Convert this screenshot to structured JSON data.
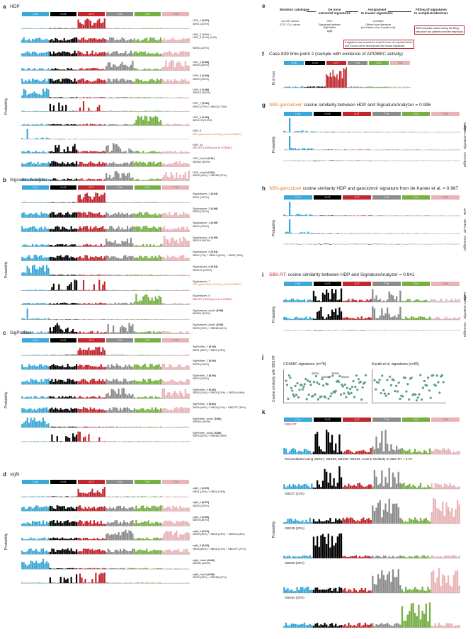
{
  "mut_classes": [
    {
      "name": "C>A",
      "color": "#3aa8d8"
    },
    {
      "name": "C>G",
      "color": "#000000"
    },
    {
      "name": "C>T",
      "color": "#c1272d"
    },
    {
      "name": "T>A",
      "color": "#8c8c8c"
    },
    {
      "name": "T>C",
      "color": "#76b043"
    },
    {
      "name": "T>G",
      "color": "#e8b4b8"
    }
  ],
  "panel_a": {
    "label": "a",
    "title": "HDP",
    "ylabel": "Probability",
    "rows": [
      {
        "n": "HDP_1 ",
        "v": "(0.97)",
        "s": "SBS1 (100%)"
      },
      {
        "n": "HDP_2 (59%) +",
        "v": "",
        "s": "HDP_3 (41%) (0.91)"
      },
      {
        "n": "SBS5 (100%)",
        "v": "",
        "s": ""
      },
      {
        "n": "HDP_4 ",
        "v": "(0.86)",
        "s": "SBS5 (100%)"
      },
      {
        "n": "HDP_5 ",
        "v": "(0.94)",
        "s": "SBS9 (100%)"
      },
      {
        "n": "HDP_6 ",
        "v": "(0.96)",
        "s": "SBS18 (100%)"
      },
      {
        "n": "HDP_7 ",
        "v": "(0.91)",
        "s": "SBS2 (27%) + SBS13 (73%)"
      },
      {
        "n": "HDP_8 ",
        "v": "(0.92)",
        "s": "SBS17b (100%)"
      },
      {
        "n": "HDP_9",
        "v": "",
        "s": "SBS-ganciclovir (100%) (not in COSMIC)"
      },
      {
        "n": "HDP_10",
        "v": "",
        "s": "SBS-RT (100%) (not in COSMIC)"
      },
      {
        "n": "HDP_clust1 ",
        "v": "(0.91)",
        "s": "SBS84 (100%)"
      },
      {
        "n": "HDP_clust2 ",
        "v": "(0.83)",
        "s": "SBS5 (43%) + SBS85 (57%)"
      }
    ]
  },
  "panel_b": {
    "label": "b",
    "title": "SignatureAnalyzer",
    "ylabel": "Probability",
    "rows": [
      {
        "n": "SigAnalyzer_1 ",
        "v": "(0.94)",
        "s": "SBS1 (100%)"
      },
      {
        "n": "SigAnalyzer_2 ",
        "v": "(0.88)",
        "s": "SBS5 (100%)"
      },
      {
        "n": "SigAnalyzer_3 ",
        "v": "(0.89)",
        "s": "SBS9 (100%)"
      },
      {
        "n": "SigAnalyzer_4 ",
        "v": "(0.89)",
        "s": "SBS18 (100%)"
      },
      {
        "n": "SigAnalyzer_5 ",
        "v": "(0.94)",
        "s": "SBS2 (7%) + SBS13 (54%) + SBS5 (39%)"
      },
      {
        "n": "SigAnalyzer_6 ",
        "v": "(0.94)",
        "s": "SBS17b (100%)"
      },
      {
        "n": "SigAnalyzer_7",
        "v": "",
        "s": "SBS-ganciclovir (100%) (not in COSMIC)"
      },
      {
        "n": "SigAnalyzer_8",
        "v": "",
        "s": "SBS-RT (100%) (not in COSMIC)"
      },
      {
        "n": "SigAnalyzer_clust1 ",
        "v": "(0.89)",
        "s": "SBS84 (100%)"
      },
      {
        "n": "SigAnalyzer_clust2 ",
        "v": "(0.90)",
        "s": "SBS5 (19%) + SBS85 (81%)"
      }
    ]
  },
  "panel_c": {
    "label": "c",
    "title": "SigProfiler",
    "ylabel": "Probability",
    "rows": [
      {
        "n": "SigProfiler_1 ",
        "v": "(0.98)",
        "s": "SBS1 (25%) + SBS5 (75%)"
      },
      {
        "n": "SigProfiler_2 ",
        "v": "(0.90)",
        "s": "SBS5 (100%)"
      },
      {
        "n": "SigProfiler_3 ",
        "v": "(0.99)",
        "s": "SBS9 (100%)"
      },
      {
        "n": "SigProfiler_4 ",
        "v": "(0.90)",
        "s": "SBS5 (31%) + SBS8 (23%) + SBS18 (46%)"
      },
      {
        "n": "SigProfiler_5 ",
        "v": "(0.86)",
        "s": "SBS5 (49%) + SBS8 (11%) + SBS-RT (39%)"
      },
      {
        "n": "SigProfiler_clust1 ",
        "v": "(0.84)",
        "s": "SBS84 (100%)"
      },
      {
        "n": "SigProfiler_clust2 ",
        "v": "(0.89)",
        "s": "SBS5 (52%) + SBS85 (48%)"
      }
    ]
  },
  "panel_d": {
    "label": "d",
    "title": "sigfit",
    "ylabel": "Probability",
    "rows": [
      {
        "n": "sigfit_1 ",
        "v": "(0.90)",
        "s": "SBS1 (22%) + SBS5 (78%)"
      },
      {
        "n": "sigfit_2 ",
        "v": "(0.87)",
        "s": "SBS5 (100%)"
      },
      {
        "n": "sigfit_3 ",
        "v": "(0.98)",
        "s": "SBS9 (100%)"
      },
      {
        "n": "sigfit_4 ",
        "v": "(0.91)",
        "s": "SBS5 (40%) + SBS8 (23%) + SBS18 (36%)"
      },
      {
        "n": "sigfit_5 ",
        "v": "(0.93)",
        "s": "SBS5 (62%) + SBS8 (11%) + SBS-RT (27%)"
      },
      {
        "n": "sigfit_clust1 ",
        "v": "(0.84)",
        "s": "SBS84 (100%)"
      },
      {
        "n": "sigfit_clust2 ",
        "v": "(0.89)",
        "s": "SBS5 (33%) + SBS85 (67%)"
      }
    ]
  },
  "panel_e": {
    "label": "e",
    "step1": "Mutation catalogue",
    "step1_sub": "CLL/RT cohort\nICGC CLL cohort",
    "step2": "De novo\nextracted signatures",
    "step2_sub": "HDP\nSignatureAnalyzer\nSigProfiler\nsigfit",
    "step3": "Assignment\nto known signatures",
    "step3_sub": "COSMIC\nOthers from literature\n(de Kanter et al, Kucab et al)",
    "step4": "Fitting of signatures\nto samples/subclones",
    "note1": "A signature was considered novel if it was not reported before\nand it could not be decomposed into known signatures",
    "note2": "SBS-melphalan added during the fitting\nstep since two patients received melphalan"
  },
  "panel_f": {
    "label": "f",
    "title": "Case 839 time point 2 (sample with evidence of APOBEC activity)",
    "ylabel": "N of mut."
  },
  "panel_g": {
    "label": "g",
    "title_hl": "SBS-ganciclovir",
    "title": ": cosine similarity between HDP and SignatureAnalyzer = 0.996",
    "ylabel": "Probability",
    "rows": [
      "HDP",
      "Signature Analyzer",
      "Difference"
    ]
  },
  "panel_h": {
    "label": "h",
    "title_hl": "SBS-ganciclovir",
    "title": " cosine similarity HDP and ganciclovir signature from de Kanter et al. = 0.987",
    "ylabel": "Probability",
    "rows": [
      "HDP",
      "de Kanter",
      "Difference"
    ]
  },
  "panel_i": {
    "label": "i",
    "title_hl": "SBS-RT",
    "title": ": cosine similarity between HDP and SignatureAnalyzer = 0.941",
    "ylabel": "Probability",
    "rows": [
      "HDP",
      "Signature Analyzer",
      "Difference"
    ]
  },
  "panel_j": {
    "label": "j",
    "left_title": "COSMIC signatures (n=78)",
    "right_title": "Kucab et al. signatures (n=55)",
    "ylabel": "Cosine similarity with SBS-RT",
    "points": [
      "SBS31",
      "SBS35",
      "SBS98",
      "SBS93"
    ]
  },
  "panel_k": {
    "label": "k",
    "ylabel": "Probability",
    "rows": [
      {
        "t": "SBS-RT",
        "hl": true
      },
      {
        "t": "Reconstituted using SBS27, SBS39, SBS90, SBS93. Cosine similarity to SBS-RT = 0.79",
        "hl": false
      },
      {
        "t": "SBS27 (13%)",
        "hl": false
      },
      {
        "t": "SBS39 (20%)",
        "hl": false
      },
      {
        "t": "SBS90 (36%)",
        "hl": false
      },
      {
        "t": "SBS93 (32%)",
        "hl": false
      }
    ]
  }
}
